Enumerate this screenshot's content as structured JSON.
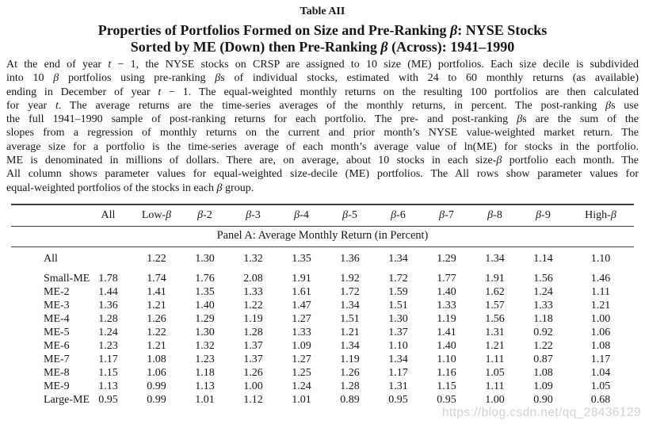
{
  "header": {
    "table_label": "Table AII",
    "title_line1": "Properties of Portfolios Formed on Size and Pre-Ranking *β*: NYSE Stocks",
    "title_line2": "Sorted by ME (Down) then Pre-Ranking *β* (Across): 1941–1990"
  },
  "caption_lines": [
    "At the end of year *t* − 1, the NYSE stocks on CRSP are assigned to 10 size (ME) portfolios. Each size decile is subdivided",
    "into 10 *β* portfolios using pre-ranking *β*s of individual stocks, estimated with 24 to 60 monthly returns (as available)",
    "ending in December of year *t* − 1. The equal-weighted monthly returns on the resulting 100 portfolios are then calculated",
    "for year *t*. The average returns are the time-series averages of the monthly returns, in percent. The post-ranking *β*s use",
    "the full 1941–1990 sample of post-ranking returns for each portfolio. The pre- and post-ranking *β*s are the sum of the",
    "slopes from a regression of monthly returns on the current and prior month’s NYSE value-weighted market return. The",
    "average size for a portfolio is the time-series average of each month’s average value of ln(ME) for stocks in the portfolio.",
    "ME is denominated in millions of dollars. There are, on average, about 10 stocks in each size-*β* portfolio each month. The",
    "All column shows parameter values for equal-weighted size-decile (ME) portfolios. The All rows show parameter values for",
    "equal-weighted portfolios of the stocks in each *β* group."
  ],
  "table": {
    "columns": [
      "",
      "All",
      "Low-*β*",
      "*β*-2",
      "*β*-3",
      "*β*-4",
      "*β*-5",
      "*β*-6",
      "*β*-7",
      "*β*-8",
      "*β*-9",
      "High-*β*"
    ],
    "panel_label": "Panel A: Average Monthly Return (in Percent)",
    "rows": [
      {
        "label": "All",
        "values": [
          "",
          "1.22",
          "1.30",
          "1.32",
          "1.35",
          "1.36",
          "1.34",
          "1.29",
          "1.34",
          "1.14",
          "1.10"
        ]
      },
      {
        "label": "Small-ME",
        "values": [
          "1.78",
          "1.74",
          "1.76",
          "2.08",
          "1.91",
          "1.92",
          "1.72",
          "1.77",
          "1.91",
          "1.56",
          "1.46"
        ]
      },
      {
        "label": "ME-2",
        "values": [
          "1.44",
          "1.41",
          "1.35",
          "1.33",
          "1.61",
          "1.72",
          "1.59",
          "1.40",
          "1.62",
          "1.24",
          "1.11"
        ]
      },
      {
        "label": "ME-3",
        "values": [
          "1.36",
          "1.21",
          "1.40",
          "1.22",
          "1.47",
          "1.34",
          "1.51",
          "1.33",
          "1.57",
          "1.33",
          "1.21"
        ]
      },
      {
        "label": "ME-4",
        "values": [
          "1.28",
          "1.26",
          "1.29",
          "1.19",
          "1.27",
          "1.51",
          "1.30",
          "1.19",
          "1.56",
          "1.18",
          "1.00"
        ]
      },
      {
        "label": "ME-5",
        "values": [
          "1.24",
          "1.22",
          "1.30",
          "1.28",
          "1.33",
          "1.21",
          "1.37",
          "1.41",
          "1.31",
          "0.92",
          "1.06"
        ]
      },
      {
        "label": "ME-6",
        "values": [
          "1.23",
          "1.21",
          "1.32",
          "1.37",
          "1.09",
          "1.34",
          "1.10",
          "1.40",
          "1.21",
          "1.22",
          "1.08"
        ]
      },
      {
        "label": "ME-7",
        "values": [
          "1.17",
          "1.08",
          "1.23",
          "1.37",
          "1.27",
          "1.19",
          "1.34",
          "1.10",
          "1.11",
          "0.87",
          "1.17"
        ]
      },
      {
        "label": "ME-8",
        "values": [
          "1.15",
          "1.06",
          "1.18",
          "1.26",
          "1.25",
          "1.26",
          "1.17",
          "1.16",
          "1.05",
          "1.08",
          "1.04"
        ]
      },
      {
        "label": "ME-9",
        "values": [
          "1.13",
          "0.99",
          "1.13",
          "1.00",
          "1.24",
          "1.28",
          "1.31",
          "1.15",
          "1.11",
          "1.09",
          "1.05"
        ]
      },
      {
        "label": "Large-ME",
        "values": [
          "0.95",
          "0.99",
          "1.01",
          "1.12",
          "1.01",
          "0.89",
          "0.95",
          "0.95",
          "1.00",
          "0.90",
          "0.68"
        ]
      }
    ]
  },
  "watermark": {
    "text": "https://blog.csdn.net/qq_28436129",
    "color": "#d2d2d2"
  },
  "colors": {
    "text": "#161616",
    "rule": "#3c3c3c",
    "background": "#ffffff"
  }
}
